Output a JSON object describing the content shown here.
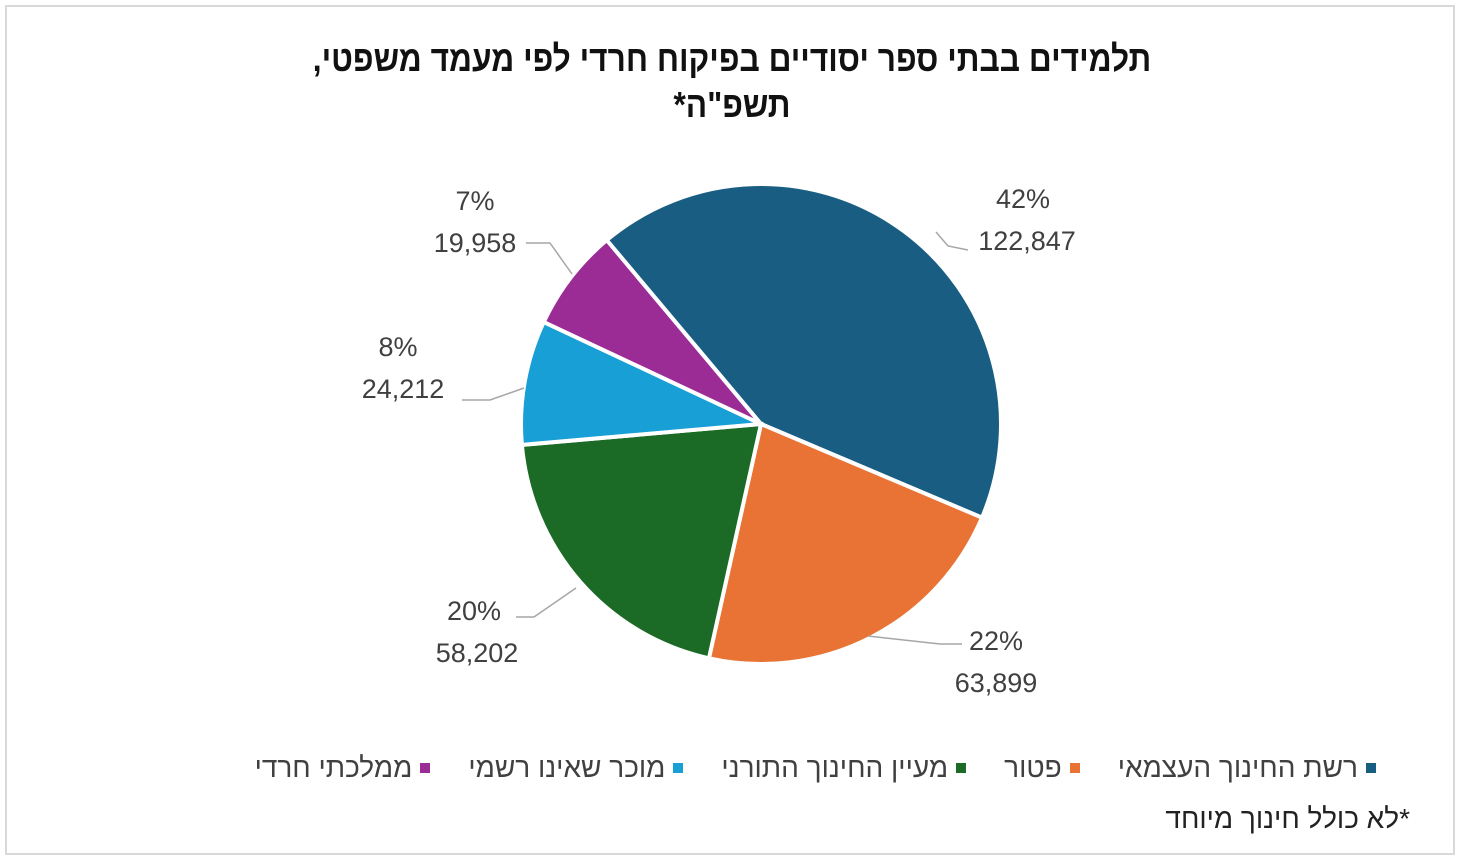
{
  "chart_data": {
    "type": "pie",
    "title_line1": "תלמידים בבתי ספר יסודיים בפיקוח חרדי לפי מעמד משפטי,",
    "title_line2": "תשפ\"ה*",
    "slices": [
      {
        "name": "רשת החינוך העצמאי",
        "value": 122847,
        "value_label": "122,847",
        "percent_label": "42%",
        "color": "#195e82"
      },
      {
        "name": "פטור",
        "value": 63899,
        "value_label": "63,899",
        "percent_label": "22%",
        "color": "#e87335"
      },
      {
        "name": "מעיין החינוך התורני",
        "value": 58202,
        "value_label": "58,202",
        "percent_label": "20%",
        "color": "#1b6b27"
      },
      {
        "name": "מוכר שאינו רשמי",
        "value": 24212,
        "value_label": "24,212",
        "percent_label": "8%",
        "color": "#179fd6"
      },
      {
        "name": "ממלכתי חרדי",
        "value": 19958,
        "value_label": "19,958",
        "percent_label": "7%",
        "color": "#9b2b95"
      }
    ],
    "legend_position": "bottom",
    "footnote": "*לא כולל חינוך מיוחד"
  }
}
